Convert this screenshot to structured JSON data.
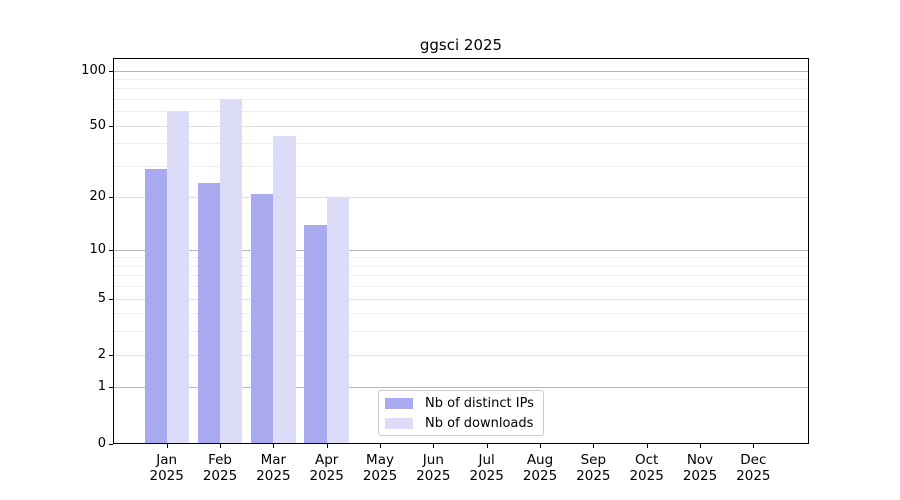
{
  "chart_data": {
    "type": "bar",
    "title": "ggsci 2025",
    "x_categories": [
      "Jan",
      "Feb",
      "Mar",
      "Apr",
      "May",
      "Jun",
      "Jul",
      "Aug",
      "Sep",
      "Oct",
      "Nov",
      "Dec"
    ],
    "x_year_label": "2025",
    "series": [
      {
        "name": "Nb of distinct IPs",
        "color": "#a9a9f0",
        "values": [
          29,
          24,
          21,
          14,
          null,
          null,
          null,
          null,
          null,
          null,
          null,
          null
        ]
      },
      {
        "name": "Nb of downloads",
        "color": "#dcdcf8",
        "values": [
          60,
          70,
          44,
          20,
          null,
          null,
          null,
          null,
          null,
          null,
          null,
          null
        ]
      }
    ],
    "y_scale": "log1p",
    "y_axis": {
      "tick_values": [
        0,
        1,
        2,
        5,
        10,
        20,
        50,
        100
      ],
      "pow10_grid_values": [
        1,
        10,
        100
      ],
      "mid_grid_values": [
        2,
        5,
        20,
        50
      ],
      "minor_grid_values": [
        3,
        4,
        6,
        7,
        8,
        9,
        30,
        40,
        60,
        70,
        80,
        90
      ],
      "max": 117
    },
    "grid": "on",
    "legend_position": "lower-center-inside"
  },
  "colors": {
    "bar_distinct_ips": "#a9a9f0",
    "bar_downloads": "#dcdcf8",
    "grid_pow10": "#b6b6b6",
    "grid_mid": "#dedede",
    "grid_minor": "#eeeeee",
    "axis": "#000000",
    "legend_border": "#cccccc"
  }
}
